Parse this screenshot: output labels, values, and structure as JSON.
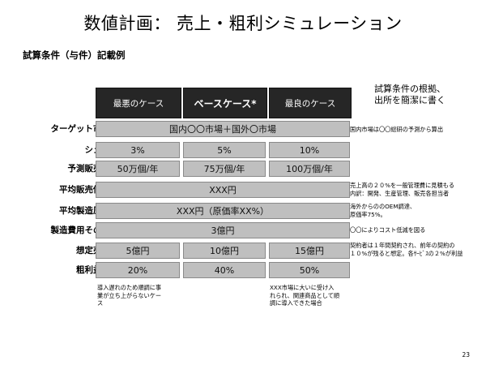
{
  "title": "数値計画： 売上・粗利シミュレーション",
  "subtitle": "試算条件（与件）記載例",
  "headers": [
    "最悪のケース",
    "ベースケース*",
    "最良のケース"
  ],
  "header_note": [
    "試算条件の根拠、",
    "出所を簡潔に書く"
  ],
  "rows": {
    "market": {
      "label": "ターゲット市場",
      "value": "国内〇〇市場＋国外〇市場",
      "note": [
        "国内市場は〇〇総研の予測から算出"
      ]
    },
    "share": {
      "label": "シェア",
      "values": [
        "3%",
        "5%",
        "10%"
      ]
    },
    "units": {
      "label": "予測販売数",
      "values": [
        "50万個/年",
        "75万個/年",
        "100万個/年"
      ]
    },
    "price": {
      "label": "平均販売価格",
      "value": "XXX円",
      "note": [
        "売上高の２０%を一般管理費に見積もる",
        "内訳：開発、生産管理、販売各担当者"
      ]
    },
    "cost": {
      "label": "平均製造原価",
      "value": "XXX円（原価率XX%）",
      "note": [
        "海外からののOEM調達、",
        "原価率75%。"
      ]
    },
    "other": {
      "label": "製造費用その他",
      "value": "3億円",
      "note": [
        "〇〇によりコスト低減を図る"
      ]
    },
    "sales": {
      "label": "想定売上",
      "values": [
        "5億円",
        "10億円",
        "15億円"
      ],
      "note": [
        "契約者は１年間契約され、前年の契約の",
        "１０%が残ると想定。各ｻｰﾋﾞｽの２%が利益"
      ]
    },
    "margin": {
      "label": "粗利益率",
      "values": [
        "20%",
        "40%",
        "50%"
      ]
    }
  },
  "footnotes": {
    "worst": [
      "導入遅れのため順調に事",
      "業が立ち上がらないケー",
      "ス"
    ],
    "best": [
      "XXX市場に大いに受け入",
      "れられ、関連商品として順",
      "調に導入できた場合"
    ]
  },
  "page_number": "23"
}
